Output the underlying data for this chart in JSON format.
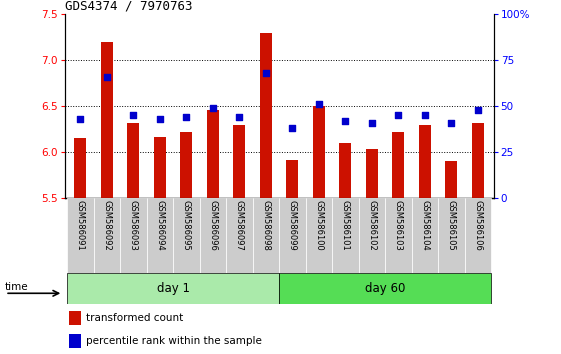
{
  "title": "GDS4374 / 7970763",
  "samples": [
    "GSM586091",
    "GSM586092",
    "GSM586093",
    "GSM586094",
    "GSM586095",
    "GSM586096",
    "GSM586097",
    "GSM586098",
    "GSM586099",
    "GSM586100",
    "GSM586101",
    "GSM586102",
    "GSM586103",
    "GSM586104",
    "GSM586105",
    "GSM586106"
  ],
  "bar_values": [
    6.15,
    7.2,
    6.32,
    6.16,
    6.22,
    6.46,
    6.3,
    7.3,
    5.92,
    6.5,
    6.1,
    6.03,
    6.22,
    6.3,
    5.9,
    6.32
  ],
  "percentile_values": [
    43,
    66,
    45,
    43,
    44,
    49,
    44,
    68,
    38,
    51,
    42,
    41,
    45,
    45,
    41,
    48
  ],
  "baseline": 5.5,
  "ylim_left": [
    5.5,
    7.5
  ],
  "ylim_right": [
    0,
    100
  ],
  "bar_color": "#cc1100",
  "dot_color": "#0000cc",
  "day1_color": "#aaeaaa",
  "day60_color": "#55dd55",
  "xtick_bg_color": "#cccccc",
  "day1_label": "day 1",
  "day60_label": "day 60",
  "day1_indices": [
    0,
    1,
    2,
    3,
    4,
    5,
    6,
    7
  ],
  "day60_indices": [
    8,
    9,
    10,
    11,
    12,
    13,
    14,
    15
  ],
  "yticks_left": [
    5.5,
    6.0,
    6.5,
    7.0,
    7.5
  ],
  "yticks_right_vals": [
    0,
    25,
    50,
    75,
    100
  ],
  "yticks_right_labels": [
    "0",
    "25",
    "50",
    "75",
    "100%"
  ],
  "legend_bar_label": "transformed count",
  "legend_dot_label": "percentile rank within the sample",
  "time_label": "time",
  "grid_values": [
    6.0,
    6.5,
    7.0
  ],
  "title_fontsize": 9,
  "bar_width": 0.45
}
